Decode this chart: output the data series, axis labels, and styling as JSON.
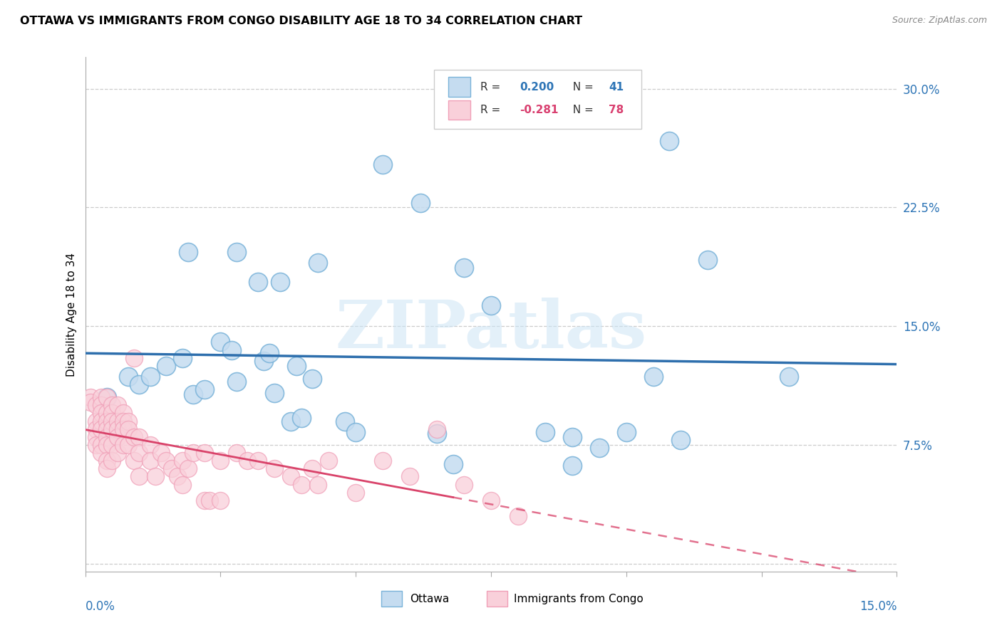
{
  "title": "OTTAWA VS IMMIGRANTS FROM CONGO DISABILITY AGE 18 TO 34 CORRELATION CHART",
  "source": "Source: ZipAtlas.com",
  "ylabel": "Disability Age 18 to 34",
  "ytick_vals": [
    0.0,
    0.075,
    0.15,
    0.225,
    0.3
  ],
  "ytick_labels": [
    "",
    "7.5%",
    "15.0%",
    "22.5%",
    "30.0%"
  ],
  "xlim": [
    0.0,
    0.15
  ],
  "ylim": [
    -0.005,
    0.32
  ],
  "watermark": "ZIPatlas",
  "ottawa_color": "#7ab3d9",
  "ottawa_fill": "#c5dcf0",
  "congo_color": "#f0a0b8",
  "congo_fill": "#f9d0da",
  "trend_blue": "#2e6fad",
  "trend_pink": "#d9436a",
  "ottawa_points": [
    [
      0.004,
      0.105
    ],
    [
      0.008,
      0.118
    ],
    [
      0.01,
      0.113
    ],
    [
      0.012,
      0.118
    ],
    [
      0.015,
      0.125
    ],
    [
      0.018,
      0.13
    ],
    [
      0.019,
      0.197
    ],
    [
      0.02,
      0.107
    ],
    [
      0.022,
      0.11
    ],
    [
      0.025,
      0.14
    ],
    [
      0.027,
      0.135
    ],
    [
      0.028,
      0.115
    ],
    [
      0.028,
      0.197
    ],
    [
      0.032,
      0.178
    ],
    [
      0.033,
      0.128
    ],
    [
      0.034,
      0.133
    ],
    [
      0.035,
      0.108
    ],
    [
      0.036,
      0.178
    ],
    [
      0.038,
      0.09
    ],
    [
      0.039,
      0.125
    ],
    [
      0.04,
      0.092
    ],
    [
      0.042,
      0.117
    ],
    [
      0.043,
      0.19
    ],
    [
      0.048,
      0.09
    ],
    [
      0.05,
      0.083
    ],
    [
      0.055,
      0.252
    ],
    [
      0.062,
      0.228
    ],
    [
      0.065,
      0.082
    ],
    [
      0.068,
      0.063
    ],
    [
      0.07,
      0.187
    ],
    [
      0.075,
      0.163
    ],
    [
      0.085,
      0.083
    ],
    [
      0.09,
      0.08
    ],
    [
      0.09,
      0.062
    ],
    [
      0.095,
      0.073
    ],
    [
      0.1,
      0.083
    ],
    [
      0.105,
      0.118
    ],
    [
      0.108,
      0.267
    ],
    [
      0.11,
      0.078
    ],
    [
      0.115,
      0.192
    ],
    [
      0.13,
      0.118
    ]
  ],
  "congo_points": [
    [
      0.001,
      0.105
    ],
    [
      0.001,
      0.102
    ],
    [
      0.002,
      0.1
    ],
    [
      0.002,
      0.09
    ],
    [
      0.002,
      0.085
    ],
    [
      0.002,
      0.08
    ],
    [
      0.002,
      0.075
    ],
    [
      0.003,
      0.105
    ],
    [
      0.003,
      0.1
    ],
    [
      0.003,
      0.095
    ],
    [
      0.003,
      0.09
    ],
    [
      0.003,
      0.085
    ],
    [
      0.003,
      0.075
    ],
    [
      0.003,
      0.07
    ],
    [
      0.004,
      0.105
    ],
    [
      0.004,
      0.095
    ],
    [
      0.004,
      0.09
    ],
    [
      0.004,
      0.085
    ],
    [
      0.004,
      0.08
    ],
    [
      0.004,
      0.075
    ],
    [
      0.004,
      0.065
    ],
    [
      0.004,
      0.06
    ],
    [
      0.005,
      0.1
    ],
    [
      0.005,
      0.095
    ],
    [
      0.005,
      0.09
    ],
    [
      0.005,
      0.085
    ],
    [
      0.005,
      0.075
    ],
    [
      0.005,
      0.065
    ],
    [
      0.006,
      0.1
    ],
    [
      0.006,
      0.09
    ],
    [
      0.006,
      0.085
    ],
    [
      0.006,
      0.08
    ],
    [
      0.006,
      0.07
    ],
    [
      0.007,
      0.095
    ],
    [
      0.007,
      0.09
    ],
    [
      0.007,
      0.085
    ],
    [
      0.007,
      0.075
    ],
    [
      0.008,
      0.09
    ],
    [
      0.008,
      0.085
    ],
    [
      0.008,
      0.075
    ],
    [
      0.009,
      0.13
    ],
    [
      0.009,
      0.08
    ],
    [
      0.009,
      0.065
    ],
    [
      0.01,
      0.08
    ],
    [
      0.01,
      0.07
    ],
    [
      0.01,
      0.055
    ],
    [
      0.012,
      0.075
    ],
    [
      0.012,
      0.065
    ],
    [
      0.013,
      0.055
    ],
    [
      0.014,
      0.07
    ],
    [
      0.015,
      0.065
    ],
    [
      0.016,
      0.06
    ],
    [
      0.017,
      0.055
    ],
    [
      0.018,
      0.065
    ],
    [
      0.018,
      0.05
    ],
    [
      0.019,
      0.06
    ],
    [
      0.02,
      0.07
    ],
    [
      0.022,
      0.07
    ],
    [
      0.022,
      0.04
    ],
    [
      0.023,
      0.04
    ],
    [
      0.025,
      0.065
    ],
    [
      0.025,
      0.04
    ],
    [
      0.028,
      0.07
    ],
    [
      0.03,
      0.065
    ],
    [
      0.032,
      0.065
    ],
    [
      0.035,
      0.06
    ],
    [
      0.038,
      0.055
    ],
    [
      0.04,
      0.05
    ],
    [
      0.042,
      0.06
    ],
    [
      0.043,
      0.05
    ],
    [
      0.045,
      0.065
    ],
    [
      0.05,
      0.045
    ],
    [
      0.055,
      0.065
    ],
    [
      0.06,
      0.055
    ],
    [
      0.065,
      0.085
    ],
    [
      0.07,
      0.05
    ],
    [
      0.075,
      0.04
    ],
    [
      0.08,
      0.03
    ]
  ]
}
